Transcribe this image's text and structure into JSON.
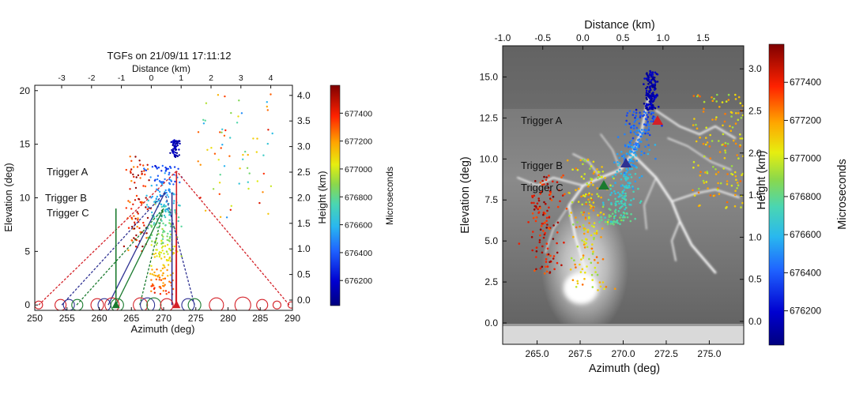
{
  "chart_data": [
    {
      "type": "scatter",
      "title": "TGFs on 21/09/11 17:11:12",
      "xlabel": "Azimuth (deg)",
      "ylabel": "Elevation (deg)",
      "x2label": "Distance (km)",
      "y2label": "Height (km)",
      "colorbar_label": "Microseconds",
      "xlim": [
        250,
        290
      ],
      "ylim": [
        -0.5,
        20.5
      ],
      "x_ticks": [
        250,
        255,
        260,
        265,
        270,
        275,
        280,
        285,
        290
      ],
      "y_ticks": [
        0,
        5,
        10,
        15,
        20
      ],
      "x2_ticks": [
        -3,
        -2,
        -1,
        0,
        1,
        2,
        3,
        4
      ],
      "y2_ticks": [
        "0.0",
        "0.5",
        "1.0",
        "1.5",
        "2.0",
        "2.5",
        "3.0",
        "3.5",
        "4.0"
      ],
      "colorbar_ticks": [
        676200,
        676400,
        676600,
        676800,
        677000,
        677200,
        677400
      ],
      "colorbar_range": [
        676020,
        677600
      ],
      "triggers": [
        {
          "name": "Trigger A",
          "color": "#d42027",
          "azimuth": 272.0,
          "elevation": 0.0,
          "source": [
            272.0,
            12.5
          ],
          "label_pos": [
            59,
            222
          ],
          "stations": [
            250.6,
            271.9,
            289.5
          ]
        },
        {
          "name": "Trigger B",
          "color": "#2e3192",
          "azimuth": 271.3,
          "elevation": 0.0,
          "source": [
            270.2,
            10.5
          ],
          "label_pos": [
            57,
            255
          ],
          "stations": [
            254.2,
            261.4,
            274.8
          ]
        },
        {
          "name": "Trigger C",
          "color": "#1a7a2e",
          "azimuth": 262.6,
          "elevation": 0.0,
          "source": [
            270.0,
            9.0
          ],
          "label_pos": [
            59,
            274
          ],
          "stations": [
            256.5,
            262.6,
            266.3
          ]
        }
      ],
      "circles": [
        {
          "az": 250.6,
          "r": 5,
          "color": "#d42027"
        },
        {
          "az": 254.0,
          "r": 7,
          "color": "#d42027"
        },
        {
          "az": 255.3,
          "r": 7,
          "color": "#2e3192"
        },
        {
          "az": 256.6,
          "r": 7,
          "color": "#1a7a2e"
        },
        {
          "az": 259.7,
          "r": 8,
          "color": "#d42027"
        },
        {
          "az": 260.8,
          "r": 8,
          "color": "#2e3192"
        },
        {
          "az": 262.0,
          "r": 9,
          "color": "#d42027"
        },
        {
          "az": 262.8,
          "r": 8,
          "color": "#1a7a2e"
        },
        {
          "az": 266.4,
          "r": 9,
          "color": "#d42027"
        },
        {
          "az": 267.5,
          "r": 9,
          "color": "#2e3192"
        },
        {
          "az": 268.5,
          "r": 9,
          "color": "#1a7a2e"
        },
        {
          "az": 270.5,
          "r": 8,
          "color": "#d42027"
        },
        {
          "az": 273.8,
          "r": 8,
          "color": "#2e3192"
        },
        {
          "az": 274.8,
          "r": 8,
          "color": "#1a7a2e"
        },
        {
          "az": 278.2,
          "r": 9,
          "color": "#d42027"
        },
        {
          "az": 282.3,
          "r": 10,
          "color": "#d42027"
        },
        {
          "az": 285.3,
          "r": 7,
          "color": "#d42027"
        },
        {
          "az": 287.6,
          "r": 5,
          "color": "#d42027"
        },
        {
          "az": 289.8,
          "r": 4,
          "color": "#d42027"
        }
      ]
    },
    {
      "type": "scatter",
      "title": "",
      "xlabel": "Azimuth (deg)",
      "ylabel": "Elevation (deg)",
      "x2label": "Distance (km)",
      "y2label": "Height (km)",
      "colorbar_label": "Microseconds",
      "xlim": [
        263.0,
        277.0
      ],
      "ylim": [
        -1.3,
        16.9
      ],
      "x_ticks": [
        "265.0",
        "267.5",
        "270.0",
        "272.5",
        "275.0"
      ],
      "y_ticks": [
        "0.0",
        "2.5",
        "5.0",
        "7.5",
        "10.0",
        "12.5",
        "15.0"
      ],
      "x2_ticks": [
        "-1.0",
        "-0.5",
        "0.0",
        "0.5",
        "1.0",
        "1.5"
      ],
      "y2_ticks": [
        "0.0",
        "0.5",
        "1.0",
        "1.5",
        "2.0",
        "2.5",
        "3.0"
      ],
      "colorbar_ticks": [
        676200,
        676400,
        676600,
        676800,
        677000,
        677200,
        677400
      ],
      "colorbar_range": [
        676020,
        677600
      ],
      "background": "lightning-photo",
      "triggers": [
        {
          "name": "Trigger A",
          "color": "#d42027",
          "azimuth": 272.3,
          "elevation": 12.0
        },
        {
          "name": "Trigger B",
          "color": "#2e3192",
          "azimuth": 270.6,
          "elevation": 9.6
        },
        {
          "name": "Trigger C",
          "color": "#1a7a2e",
          "azimuth": 268.9,
          "elevation": 8.3
        }
      ]
    }
  ]
}
